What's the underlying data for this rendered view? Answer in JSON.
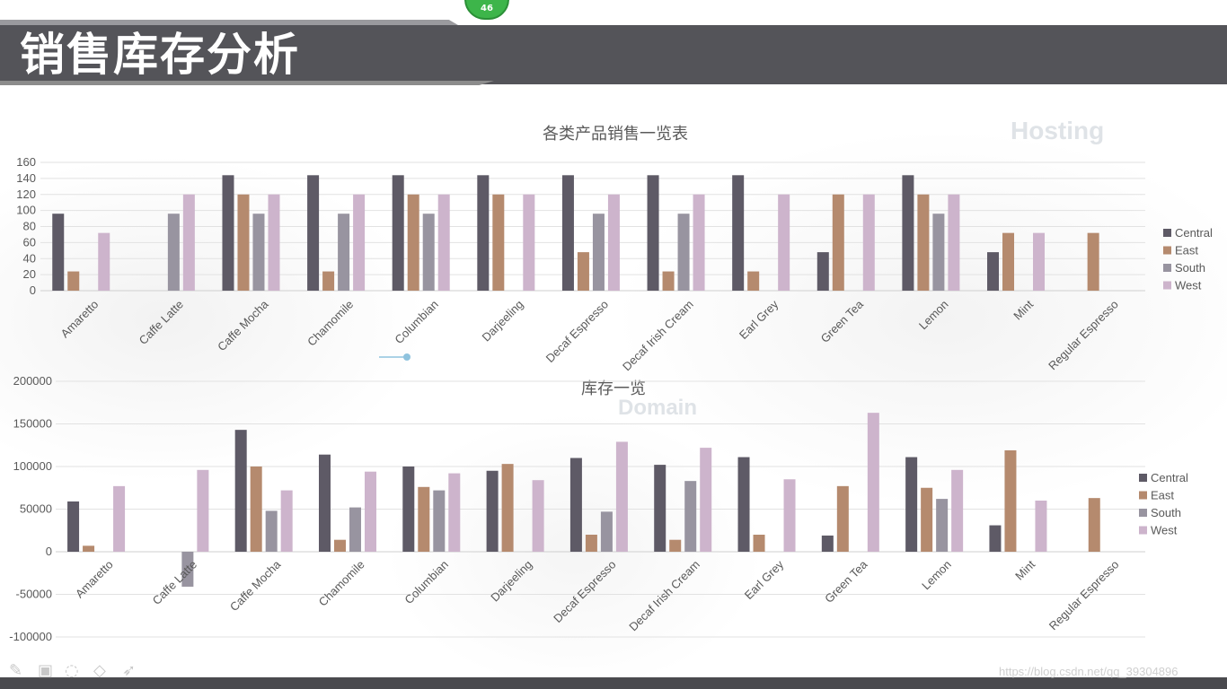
{
  "page": {
    "title": "销售库存分析",
    "page_number": "46",
    "watermark_words": [
      "Hosting",
      "Domain"
    ],
    "url_watermark": "https://blog.csdn.net/qq_39304896"
  },
  "colors": {
    "Central": "#5e5a66",
    "East": "#b58a6e",
    "South": "#9894a0",
    "West": "#cdb4cc",
    "title_bar": "#545459"
  },
  "chart_data": [
    {
      "type": "bar",
      "title": "各类产品销售一览表",
      "categories": [
        "Amaretto",
        "Caffe Latte",
        "Caffe Mocha",
        "Chamomile",
        "Columbian",
        "Darjeeling",
        "Decaf Espresso",
        "Decaf Irish Cream",
        "Earl Grey",
        "Green Tea",
        "Lemon",
        "Mint",
        "Regular Espresso"
      ],
      "series": [
        {
          "name": "Central",
          "values": [
            96,
            null,
            144,
            144,
            144,
            144,
            144,
            144,
            144,
            48,
            144,
            48,
            null
          ]
        },
        {
          "name": "East",
          "values": [
            24,
            null,
            120,
            24,
            120,
            120,
            48,
            24,
            24,
            120,
            120,
            72,
            72
          ]
        },
        {
          "name": "South",
          "values": [
            null,
            96,
            96,
            96,
            96,
            null,
            96,
            96,
            null,
            null,
            96,
            null,
            null
          ]
        },
        {
          "name": "West",
          "values": [
            72,
            120,
            120,
            120,
            120,
            120,
            120,
            120,
            120,
            120,
            120,
            72,
            null
          ]
        }
      ],
      "yticks": [
        "0",
        "20",
        "40",
        "60",
        "80",
        "100",
        "120",
        "140",
        "160"
      ],
      "ylim": [
        0,
        160
      ],
      "grid": true,
      "legend_position": "right"
    },
    {
      "type": "bar",
      "title": "库存一览",
      "categories": [
        "Amaretto",
        "Caffe Latte",
        "Caffe Mocha",
        "Chamomile",
        "Columbian",
        "Darjeeling",
        "Decaf Espresso",
        "Decaf Irish Cream",
        "Earl Grey",
        "Green Tea",
        "Lemon",
        "Mint",
        "Regular Espresso"
      ],
      "series": [
        {
          "name": "Central",
          "values": [
            59000,
            null,
            143000,
            114000,
            100000,
            95000,
            110000,
            102000,
            111000,
            19000,
            111000,
            31000,
            null
          ]
        },
        {
          "name": "East",
          "values": [
            7000,
            null,
            100000,
            14000,
            76000,
            103000,
            20000,
            14000,
            20000,
            77000,
            75000,
            119000,
            63000
          ]
        },
        {
          "name": "South",
          "values": [
            null,
            -41000,
            48000,
            52000,
            72000,
            null,
            47000,
            83000,
            null,
            null,
            62000,
            null,
            null
          ]
        },
        {
          "name": "West",
          "values": [
            77000,
            96000,
            72000,
            94000,
            92000,
            84000,
            129000,
            122000,
            85000,
            163000,
            96000,
            60000,
            null
          ]
        }
      ],
      "yticks": [
        "-100000",
        "-50000",
        "0",
        "50000",
        "100000",
        "150000",
        "200000"
      ],
      "ylim": [
        -100000,
        200000
      ],
      "grid": true,
      "legend_position": "right"
    }
  ]
}
